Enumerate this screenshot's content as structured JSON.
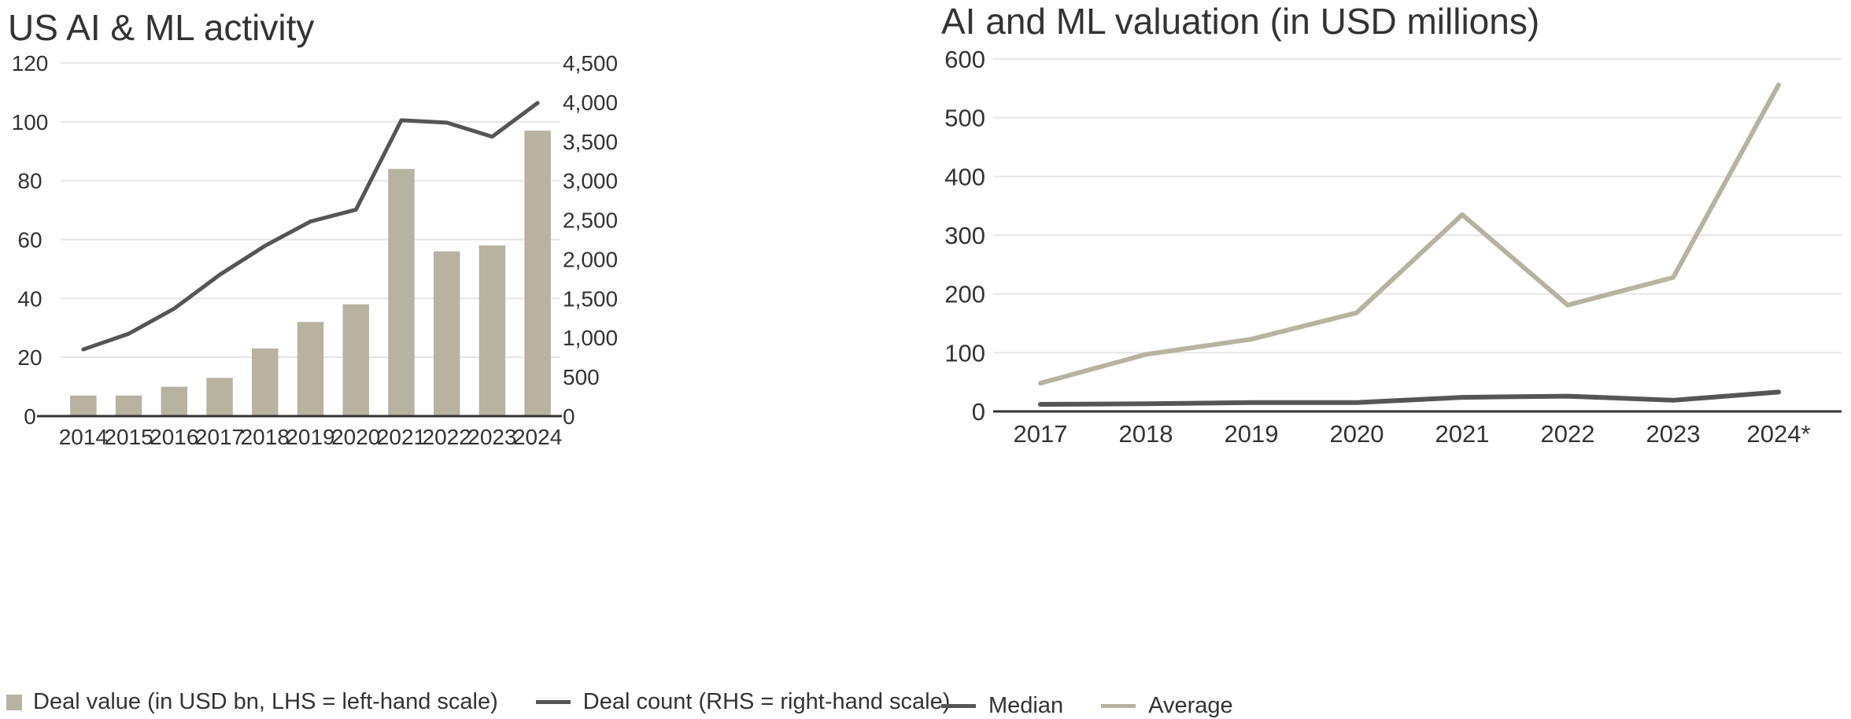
{
  "colors": {
    "bar": "#b8b3a1",
    "dark_line": "#555555",
    "light_line": "#b8b3a1",
    "grid": "#e6e6e6",
    "axis": "#333333"
  },
  "chart_data": [
    {
      "type": "bar",
      "title": "US AI & ML activity",
      "categories": [
        "2014",
        "2015",
        "2016",
        "2017",
        "2018",
        "2019",
        "2020",
        "2021",
        "2022",
        "2023",
        "2024"
      ],
      "ylim_left": [
        0,
        120
      ],
      "yticks_left": [
        "0",
        "20",
        "40",
        "60",
        "80",
        "100",
        "120"
      ],
      "ylim_right": [
        0,
        4500
      ],
      "yticks_right": [
        "0",
        "500",
        "1,000",
        "1,500",
        "2,000",
        "2,500",
        "3,000",
        "3,500",
        "4,000",
        "4,500"
      ],
      "grid": true,
      "legend_position": "bottom",
      "series": [
        {
          "name": "Deal value (in USD bn, LHS = left-hand scale)",
          "type": "bar",
          "axis": "left",
          "values": [
            7,
            7,
            10,
            13,
            23,
            32,
            38,
            84,
            56,
            58,
            97
          ]
        },
        {
          "name": "Deal count (RHS = right-hand scale)",
          "type": "line",
          "axis": "right",
          "values": [
            850,
            1050,
            1370,
            1800,
            2170,
            2480,
            2630,
            3770,
            3740,
            3560,
            3990
          ]
        }
      ]
    },
    {
      "type": "line",
      "title": "AI and ML valuation (in USD millions)",
      "categories": [
        "2017",
        "2018",
        "2019",
        "2020",
        "2021",
        "2022",
        "2023",
        "2024*"
      ],
      "ylim": [
        0,
        600
      ],
      "yticks": [
        "0",
        "100",
        "200",
        "300",
        "400",
        "500",
        "600"
      ],
      "grid": true,
      "legend_position": "bottom",
      "series": [
        {
          "name": "Median",
          "values": [
            12,
            13,
            15,
            15,
            24,
            26,
            19,
            33
          ]
        },
        {
          "name": "Average",
          "values": [
            48,
            97,
            123,
            168,
            335,
            181,
            228,
            556
          ]
        }
      ]
    }
  ]
}
